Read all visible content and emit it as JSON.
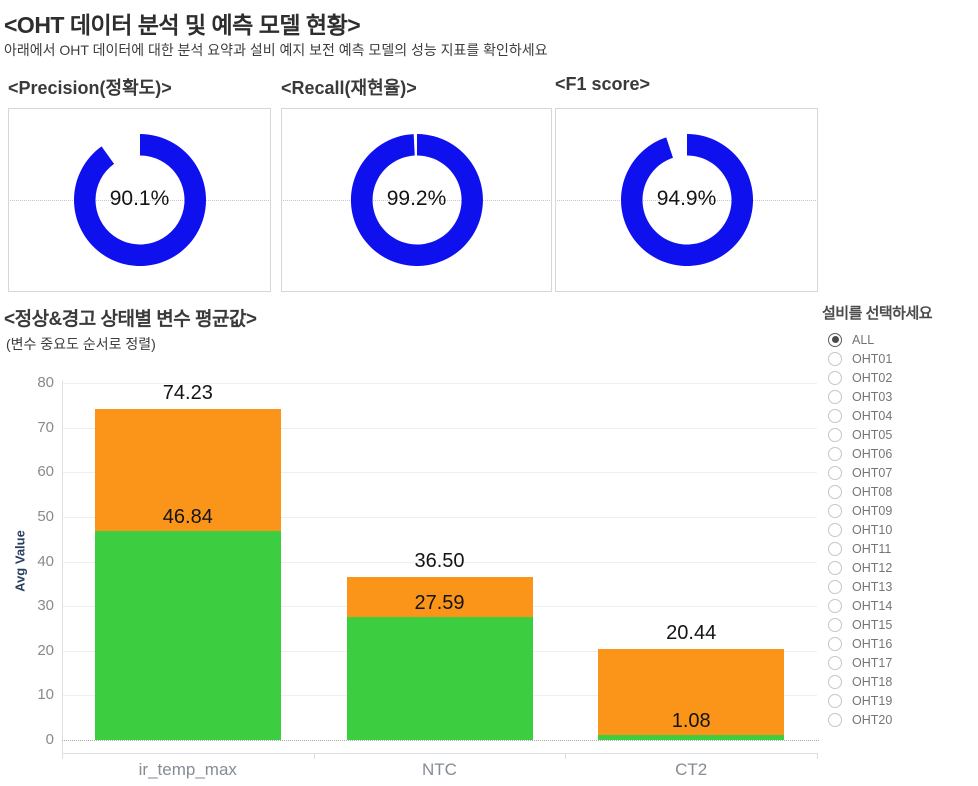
{
  "header": {
    "title": "<OHT 데이터 분석 및 예측 모델 현황>",
    "subtitle": "아래에서 OHT 데이터에 대한 분석 요약과 설비 예지 보전 예측 모델의 성능 지표를 확인하세요"
  },
  "colors": {
    "donut_blue": "#0f10ee",
    "bar_green": "#3ccd40",
    "bar_orange": "#fb9519",
    "card_border": "#d7d7d7",
    "value_text": "#141414",
    "axis_text": "#8a8a8a",
    "category_text": "#858c94",
    "y_axis_title_text": "#2a3f5f"
  },
  "chart_data": [
    {
      "type": "pie",
      "subtype": "donut",
      "title": "<Precision(정확도)>",
      "value": 90.1,
      "label": "90.1%",
      "gap_start_deg": -90,
      "direction": "clockwise"
    },
    {
      "type": "pie",
      "subtype": "donut",
      "title": "<Recall(재현율)>",
      "value": 99.2,
      "label": "99.2%",
      "gap_start_deg": -90,
      "direction": "clockwise"
    },
    {
      "type": "pie",
      "subtype": "donut",
      "title": "<F1 score>",
      "value": 94.9,
      "label": "94.9%",
      "gap_start_deg": -90,
      "direction": "clockwise"
    },
    {
      "type": "bar",
      "stacked": true,
      "title": "<정상&경고 상태별 변수 평균값>",
      "subtitle": "(변수 중요도 순서로 정렬)",
      "categories": [
        "ir_temp_max",
        "NTC",
        "CT2"
      ],
      "series": [
        {
          "name": "normal-green",
          "color": "#3ccd40",
          "values": [
            46.84,
            27.59,
            1.08
          ]
        },
        {
          "name": "warning-orange",
          "color": "#fb9519",
          "values": [
            27.39,
            8.91,
            19.36
          ]
        }
      ],
      "stack_totals": [
        74.23,
        36.5,
        20.44
      ],
      "total_labels": [
        "74.23",
        "36.50",
        "20.44"
      ],
      "segment_labels": [
        "46.84",
        "27.59",
        "1.08"
      ],
      "xlabel": "",
      "ylabel": "Avg Value",
      "ylim": [
        0,
        80
      ],
      "ytick_step": 10,
      "grid": true,
      "legend": "none"
    }
  ],
  "equipment_selector": {
    "title": "설비를 선택하세요",
    "selected": "ALL",
    "options": [
      "ALL",
      "OHT01",
      "OHT02",
      "OHT03",
      "OHT04",
      "OHT05",
      "OHT06",
      "OHT07",
      "OHT08",
      "OHT09",
      "OHT10",
      "OHT11",
      "OHT12",
      "OHT13",
      "OHT14",
      "OHT15",
      "OHT16",
      "OHT17",
      "OHT18",
      "OHT19",
      "OHT20"
    ]
  }
}
